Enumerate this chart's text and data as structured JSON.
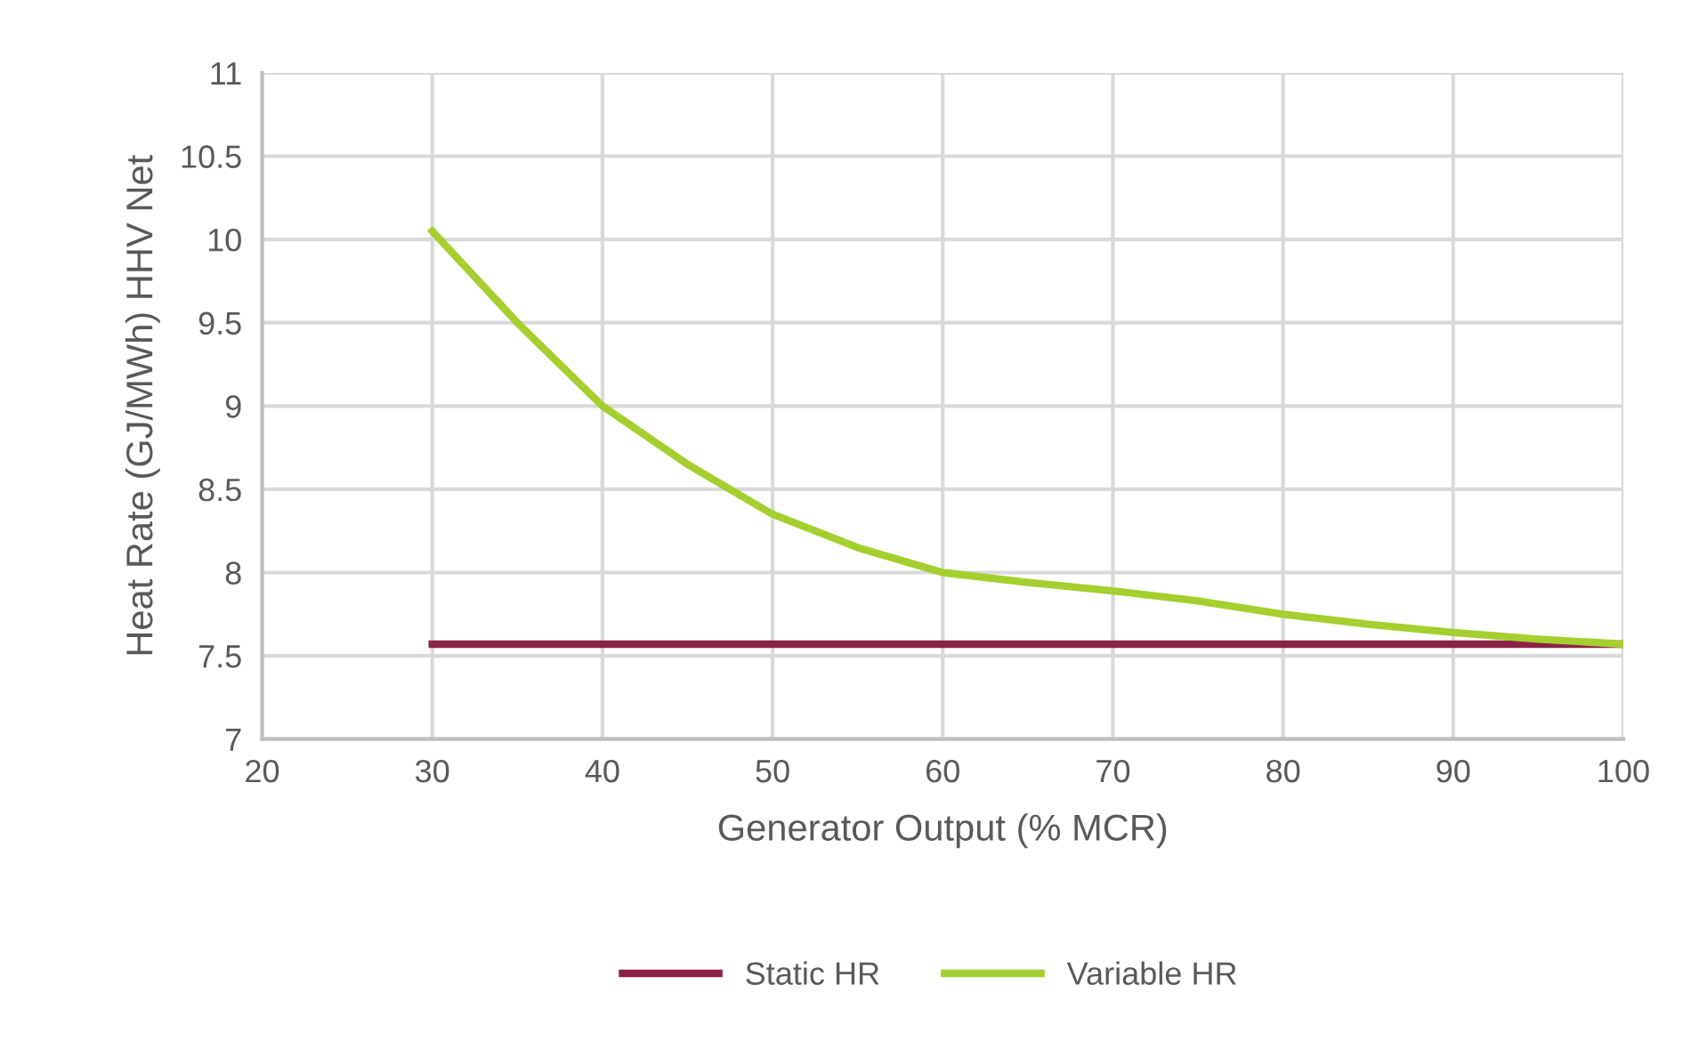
{
  "chart_data": {
    "type": "line",
    "xlabel": "Generator Output (% MCR)",
    "ylabel": "Heat Rate (GJ/MWh) HHV Net",
    "x": [
      30,
      35,
      40,
      45,
      50,
      55,
      60,
      65,
      70,
      75,
      80,
      85,
      90,
      95,
      100
    ],
    "series": [
      {
        "name": "Static HR",
        "color": "#8b2346",
        "values": [
          7.57,
          7.57,
          7.57,
          7.57,
          7.57,
          7.57,
          7.57,
          7.57,
          7.57,
          7.57,
          7.57,
          7.57,
          7.57,
          7.57,
          7.57
        ]
      },
      {
        "name": "Variable HR",
        "color": "#a4cf2e",
        "values": [
          10.05,
          9.5,
          9.0,
          8.65,
          8.35,
          8.15,
          8.0,
          7.94,
          7.89,
          7.83,
          7.75,
          7.69,
          7.64,
          7.6,
          7.57
        ]
      }
    ],
    "xlim": [
      20,
      100
    ],
    "xticks": [
      20,
      30,
      40,
      50,
      60,
      70,
      80,
      90,
      100
    ],
    "ylim": [
      7,
      11
    ],
    "yticks": [
      7,
      7.5,
      8,
      8.5,
      9,
      9.5,
      10,
      10.5,
      11
    ],
    "grid": true,
    "legend": "bottom",
    "marker": "none",
    "line_style": "solid"
  }
}
